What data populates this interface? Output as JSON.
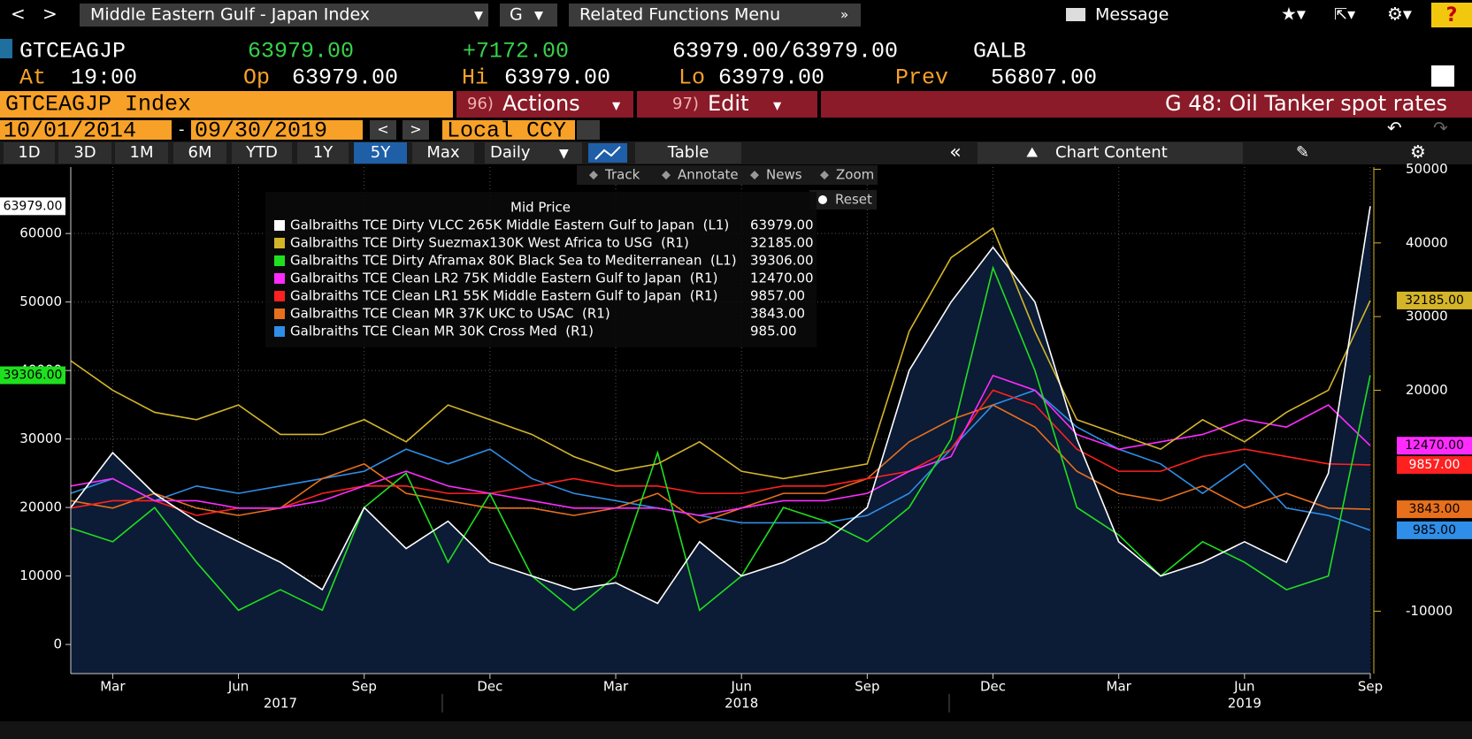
{
  "nav": {
    "security": "Middle Eastern Gulf - Japan Index",
    "g": "G",
    "related": "Related Functions Menu",
    "message": "Message",
    "help": "?"
  },
  "quote": {
    "ticker": "GTCEAGJP",
    "last": "63979.00",
    "change": "+7172.00",
    "bid_ask": "63979.00/63979.00",
    "source": "GALB",
    "at_label": "At",
    "time": "19:00",
    "op_label": "Op",
    "op": "63979.00",
    "hi_label": "Hi",
    "hi": "63979.00",
    "lo_label": "Lo",
    "lo": "63979.00",
    "prev_label": "Prev",
    "prev": "56807.00"
  },
  "bar": {
    "index": "GTCEAGJP Index",
    "actions_num": "96)",
    "actions": "Actions",
    "edit_num": "97)",
    "edit": "Edit",
    "title": "G 48: Oil Tanker spot rates"
  },
  "dates": {
    "start": "10/01/2014",
    "end": "09/30/2019",
    "currency": "Local CCY"
  },
  "periods": [
    "1D",
    "3D",
    "1M",
    "6M",
    "YTD",
    "1Y",
    "5Y",
    "Max"
  ],
  "active_period": "5Y",
  "frequency": "Daily",
  "table": "Table",
  "chart_content": "Chart Content",
  "tools": [
    "Track",
    "Annotate",
    "News",
    "Zoom"
  ],
  "reset": "Reset",
  "chart_data": {
    "type": "line",
    "legend_title": "Mid Price",
    "grid": true,
    "x": [
      "2017-02",
      "2017-03",
      "2017-04",
      "2017-05",
      "2017-06",
      "2017-07",
      "2017-08",
      "2017-09",
      "2017-10",
      "2017-11",
      "2017-12",
      "2018-01",
      "2018-02",
      "2018-03",
      "2018-04",
      "2018-05",
      "2018-06",
      "2018-07",
      "2018-08",
      "2018-09",
      "2018-10",
      "2018-11",
      "2018-12",
      "2019-01",
      "2019-02",
      "2019-03",
      "2019-04",
      "2019-05",
      "2019-06",
      "2019-07",
      "2019-08",
      "2019-09"
    ],
    "xlim": [
      "2017-02",
      "2019-09"
    ],
    "xticks": [
      {
        "value": "2017-03",
        "label": "Mar"
      },
      {
        "value": "2017-06",
        "label": "Jun"
      },
      {
        "value": "2017-09",
        "label": "Sep"
      },
      {
        "value": "2017-12",
        "label": "Dec"
      },
      {
        "value": "2018-03",
        "label": "Mar"
      },
      {
        "value": "2018-06",
        "label": "Jun"
      },
      {
        "value": "2018-09",
        "label": "Sep"
      },
      {
        "value": "2018-12",
        "label": "Dec"
      },
      {
        "value": "2019-03",
        "label": "Mar"
      },
      {
        "value": "2019-06",
        "label": "Jun"
      },
      {
        "value": "2019-09",
        "label": "Sep"
      }
    ],
    "year_ticks": [
      {
        "value": "2017-07",
        "label": "2017"
      },
      {
        "value": "2018-06",
        "label": "2018"
      },
      {
        "value": "2019-06",
        "label": "2019"
      }
    ],
    "ylim": [
      -4250,
      69700
    ],
    "yticks": [
      0,
      10000,
      20000,
      30000,
      40000,
      50000,
      60000
    ],
    "y2lim": [
      -18470,
      50300
    ],
    "y2ticks": [
      -10000,
      20000,
      30000,
      40000,
      50000
    ],
    "series": [
      {
        "name": "Galbraiths TCE Dirty VLCC 265K Middle Eastern Gulf to Japan  (L1)",
        "color": "#ffffff",
        "fill": "#0c1b36",
        "last_label": "63979.00",
        "values": [
          20000,
          28000,
          22000,
          18000,
          15000,
          12000,
          8000,
          20000,
          14000,
          18000,
          12000,
          10000,
          8000,
          9000,
          6000,
          15000,
          10000,
          12000,
          15000,
          20000,
          40000,
          50000,
          58000,
          50000,
          30000,
          15000,
          10000,
          12000,
          15000,
          12000,
          25000,
          63979
        ]
      },
      {
        "name": "Galbraiths TCE Dirty Suezmax130K West Africa to USG  (R1)",
        "color": "#d4b52a",
        "axis": "y2",
        "last_label": "32185.00",
        "values": [
          24000,
          20000,
          17000,
          16000,
          18000,
          14000,
          14000,
          16000,
          13000,
          18000,
          16000,
          14000,
          11000,
          9000,
          10000,
          13000,
          9000,
          8000,
          9000,
          10000,
          28000,
          38000,
          42000,
          28000,
          16000,
          14000,
          12000,
          16000,
          13000,
          17000,
          20000,
          32185
        ]
      },
      {
        "name": "Galbraiths TCE Dirty Aframax 80K Black Sea to Mediterranean  (L1)",
        "color": "#1fe01f",
        "last_label": "39306.00",
        "values": [
          17000,
          15000,
          20000,
          12000,
          5000,
          8000,
          5000,
          20000,
          25000,
          12000,
          22000,
          10000,
          5000,
          10000,
          28000,
          5000,
          10000,
          20000,
          18000,
          15000,
          20000,
          30000,
          55000,
          40000,
          20000,
          16000,
          10000,
          15000,
          12000,
          8000,
          10000,
          39306
        ]
      },
      {
        "name": "Galbraiths TCE Clean LR2 75K Middle Eastern Gulf to Japan  (R1)",
        "color": "#ff2bff",
        "axis": "y2",
        "last_label": "12470.00",
        "values": [
          7000,
          8000,
          5000,
          5000,
          4000,
          4000,
          5000,
          7000,
          9000,
          7000,
          6000,
          5000,
          4000,
          4000,
          4000,
          3000,
          4000,
          5000,
          5000,
          6000,
          9000,
          11000,
          22000,
          20000,
          14000,
          12000,
          13000,
          14000,
          16000,
          15000,
          18000,
          12470
        ]
      },
      {
        "name": "Galbraiths TCE Clean LR1 55K Middle Eastern Gulf to Japan  (R1)",
        "color": "#ff2020",
        "axis": "y2",
        "last_label": "9857.00",
        "values": [
          4000,
          5000,
          5000,
          3000,
          4000,
          4000,
          6000,
          7000,
          7000,
          6000,
          6000,
          7000,
          8000,
          7000,
          7000,
          6000,
          6000,
          7000,
          7000,
          8000,
          9000,
          12000,
          20000,
          18000,
          12000,
          9000,
          9000,
          11000,
          12000,
          11000,
          10000,
          9857
        ]
      },
      {
        "name": "Galbraiths TCE Clean MR 37K UKC to USAC  (R1)",
        "color": "#e8701c",
        "axis": "y2",
        "last_label": "3843.00",
        "values": [
          5000,
          4000,
          6000,
          4000,
          3000,
          4000,
          8000,
          10000,
          6000,
          5000,
          4000,
          4000,
          3000,
          4000,
          6000,
          2000,
          4000,
          6000,
          6000,
          8000,
          13000,
          16000,
          18000,
          15000,
          9000,
          6000,
          5000,
          7000,
          4000,
          6000,
          4000,
          3843
        ]
      },
      {
        "name": "Galbraiths TCE Clean MR 30K Cross Med  (R1)",
        "color": "#2f8ee8",
        "axis": "y2",
        "last_label": "985.00",
        "values": [
          6000,
          8000,
          5000,
          7000,
          6000,
          7000,
          8000,
          9000,
          12000,
          10000,
          12000,
          8000,
          6000,
          5000,
          4000,
          3000,
          2000,
          2000,
          2000,
          3000,
          6000,
          12000,
          18000,
          20000,
          15000,
          12000,
          10000,
          6000,
          10000,
          4000,
          3000,
          985
        ]
      }
    ]
  }
}
